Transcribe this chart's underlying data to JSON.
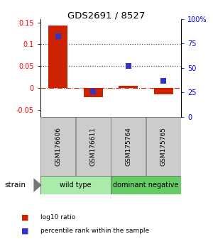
{
  "title": "GDS2691 / 8527",
  "samples": [
    "GSM176606",
    "GSM176611",
    "GSM175764",
    "GSM175765"
  ],
  "log10_ratio": [
    0.143,
    -0.021,
    0.005,
    -0.014
  ],
  "percentile_rank_pct": [
    82,
    26,
    52,
    37
  ],
  "bar_color": "#cc2200",
  "square_color": "#3333cc",
  "ylim_left": [
    -0.065,
    0.158
  ],
  "ylim_right": [
    0,
    100
  ],
  "yticks_left": [
    -0.05,
    0.0,
    0.05,
    0.1,
    0.15
  ],
  "ytick_labels_left": [
    "-0.05",
    "0",
    "0.05",
    "0.1",
    "0.15"
  ],
  "yticks_right": [
    0,
    25,
    50,
    75,
    100
  ],
  "ytick_labels_right": [
    "0",
    "25",
    "50",
    "75",
    "100%"
  ],
  "hline_0_style": "dashdot",
  "hline_0_color": "#cc2200",
  "hline_dotted_color": "#555555",
  "groups": [
    {
      "label": "wild type",
      "cols": [
        0,
        1
      ],
      "color": "#aaeaaa"
    },
    {
      "label": "dominant negative",
      "cols": [
        2,
        3
      ],
      "color": "#66cc66"
    }
  ],
  "strain_label": "strain",
  "legend_items": [
    {
      "color": "#cc2200",
      "label": "log10 ratio"
    },
    {
      "color": "#3333cc",
      "label": "percentile rank within the sample"
    }
  ],
  "bar_width": 0.55,
  "bg_color": "#ffffff",
  "label_box_color": "#cccccc",
  "label_box_edge": "#888888"
}
